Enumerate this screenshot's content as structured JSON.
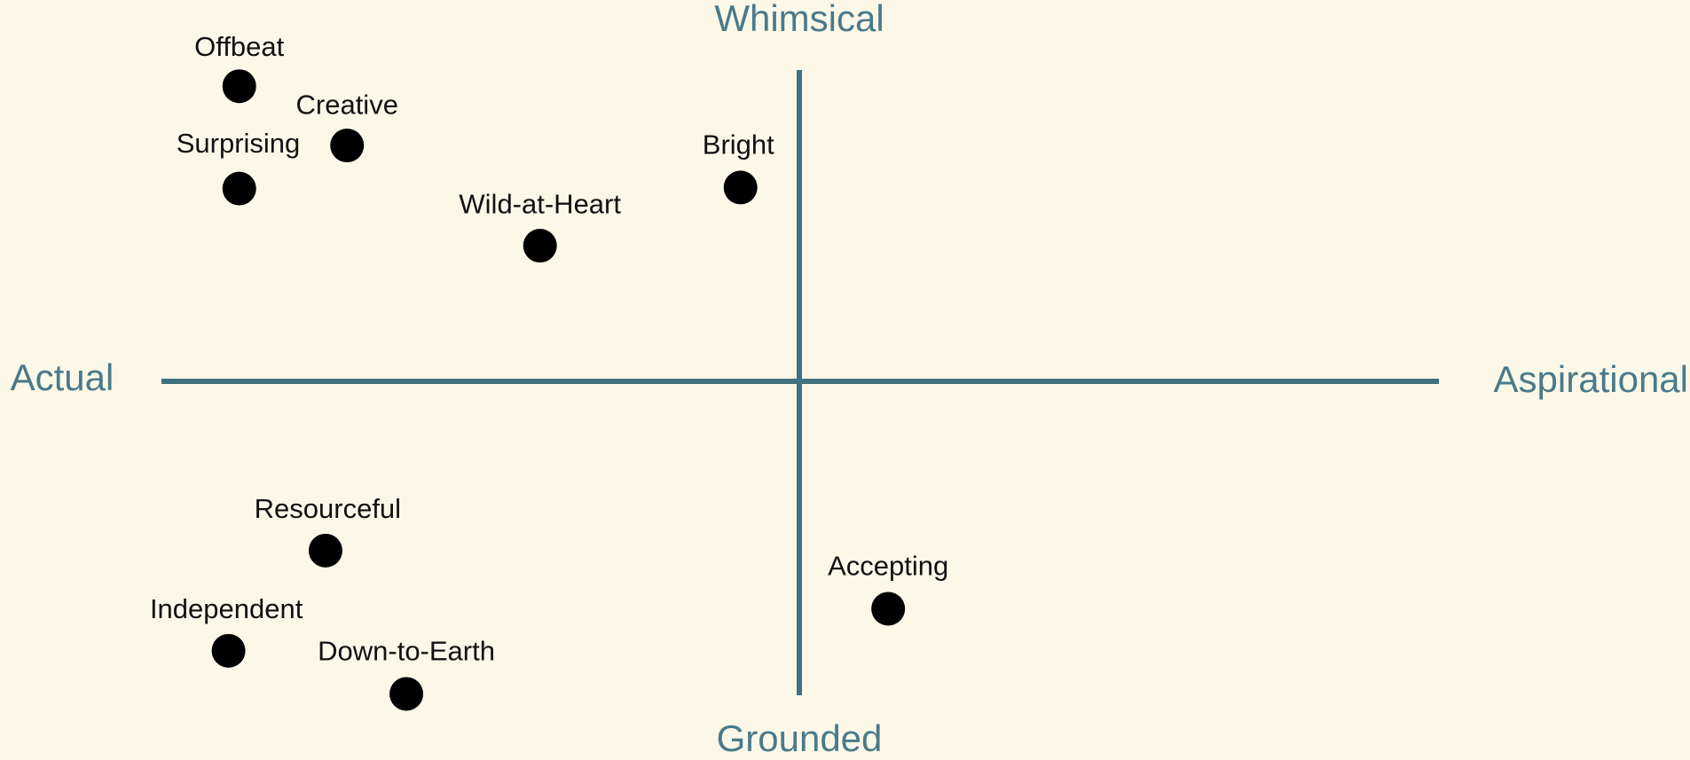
{
  "axes": {
    "top": "Whimsical",
    "bottom": "Grounded",
    "left": "Actual",
    "right": "Aspirational"
  },
  "points": [
    {
      "label": "Offbeat"
    },
    {
      "label": "Creative"
    },
    {
      "label": "Surprising"
    },
    {
      "label": "Wild-at-Heart"
    },
    {
      "label": "Bright"
    },
    {
      "label": "Resourceful"
    },
    {
      "label": "Independent"
    },
    {
      "label": "Down-to-Earth"
    },
    {
      "label": "Accepting"
    }
  ]
}
